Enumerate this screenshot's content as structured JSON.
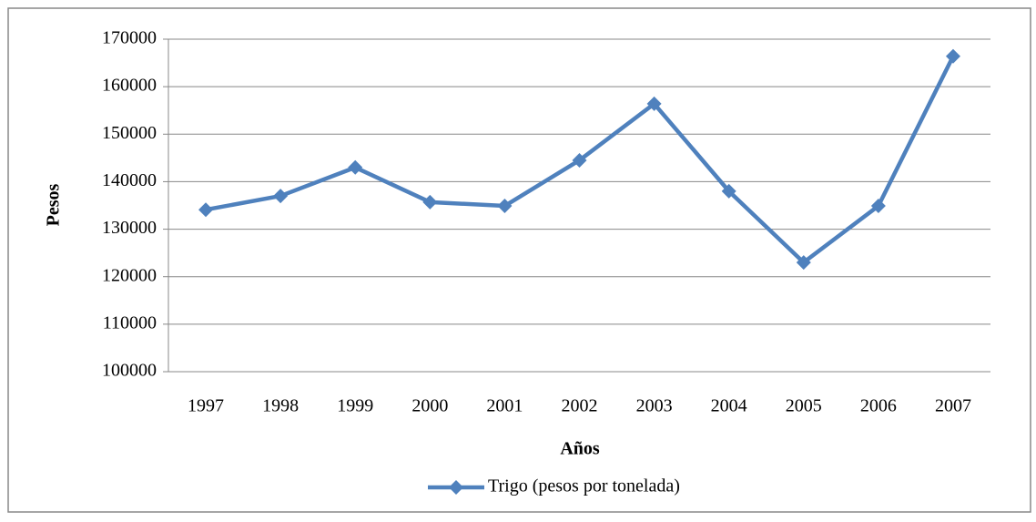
{
  "chart_data": {
    "type": "line",
    "x_label": "Años",
    "y_label": "Pesos",
    "categories": [
      "1997",
      "1998",
      "1999",
      "2000",
      "2001",
      "2002",
      "2003",
      "2004",
      "2005",
      "2006",
      "2007"
    ],
    "series": [
      {
        "name": "Trigo (pesos por tonelada)",
        "color": "#4f81bd",
        "values": [
          134100,
          137000,
          143000,
          135700,
          134900,
          144500,
          156400,
          138000,
          123000,
          134900,
          166400
        ]
      }
    ],
    "ylim": [
      100000,
      170000
    ],
    "yticks": [
      100000,
      110000,
      120000,
      130000,
      140000,
      150000,
      160000,
      170000
    ],
    "grid": true,
    "legend": "bottom"
  }
}
